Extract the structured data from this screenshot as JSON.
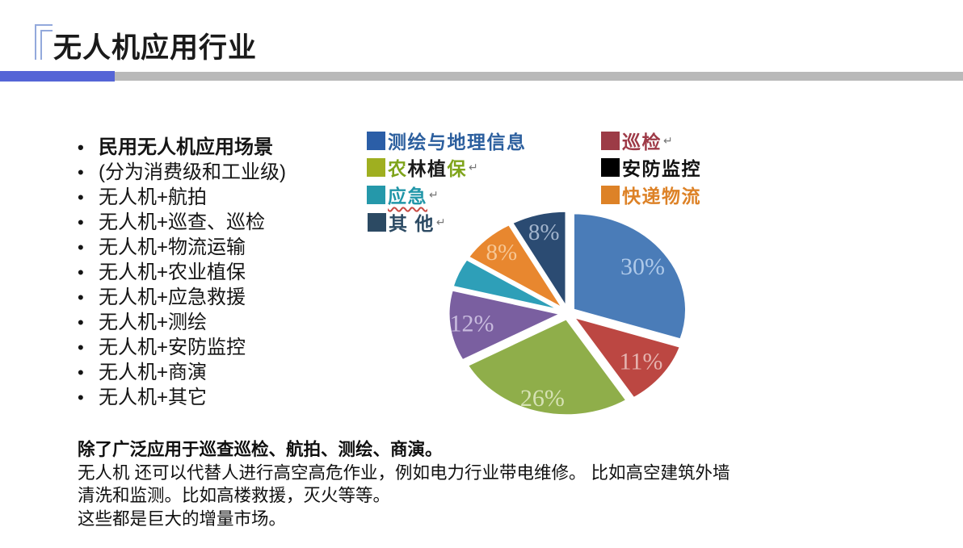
{
  "slide": {
    "title": "无人机应用行业",
    "divider_blue": "#5565d6",
    "divider_gray": "#b9b9b9"
  },
  "list": {
    "items": [
      "民用无人机应用场景",
      "(分为消费级和工业级)",
      "无人机+航拍",
      "无人机+巡查、巡检",
      "无人机+物流运输",
      "无人机+农业植保",
      "无人机+应急救援",
      "无人机+测绘",
      "无人机+安防监控",
      "无人机+商演",
      "无人机+其它"
    ]
  },
  "legend": {
    "left": [
      {
        "label": "测绘与地理信息",
        "square": "#2b5ea7",
        "text_color": "#2c5f9e",
        "arrow": ""
      },
      {
        "p1": "农",
        "p2": "林植",
        "p3": "保",
        "square": "#9faf20",
        "green": "#7fa41b",
        "black": "#1a1a1a",
        "arrow": "↵"
      },
      {
        "label": "应急",
        "square": "#2598aa",
        "text_color": "#2196a8",
        "arrow": "↵"
      },
      {
        "label": "其 他",
        "square": "#2c4a63",
        "text_color": "#2c4a63",
        "arrow": "↵"
      }
    ],
    "right": [
      {
        "label": "巡检",
        "square": "#9c3b46",
        "text_color": "#9e3a47",
        "arrow": "↵"
      },
      {
        "label": "安防监控",
        "square": "#000000",
        "text_color": "#111111",
        "arrow": ""
      },
      {
        "label": "快递物流",
        "square": "#dd8227",
        "text_color": "#dd8227",
        "arrow": ""
      }
    ]
  },
  "chart_data": {
    "type": "pie",
    "title": "",
    "start_angle": "12-oclock",
    "clockwise": true,
    "ellipse": true,
    "legend_position": "top",
    "slices": [
      {
        "name": "测绘与地理信息",
        "value": 30,
        "label": "30%",
        "color": "#4a7cb8",
        "label_color": "#aec9e9"
      },
      {
        "name": "巡检",
        "value": 11,
        "label": "11%",
        "color": "#bc4742",
        "label_color": "#e5b4b0"
      },
      {
        "name": "农林植保",
        "value": 26,
        "label": "26%",
        "color": "#8fae4a",
        "label_color": "#d6e2b4"
      },
      {
        "name": "安防监控",
        "value": 12,
        "label": "12%",
        "color": "#7a5fa0",
        "label_color": "#c8bbde"
      },
      {
        "name": "应急",
        "value": 5,
        "label": "",
        "color": "#2e9fb8",
        "label_color": "#ffffff"
      },
      {
        "name": "快递物流",
        "value": 8,
        "label": "8%",
        "color": "#e8872f",
        "label_color": "#f6c795"
      },
      {
        "name": "其他",
        "value": 8,
        "label": "8%",
        "color": "#2b4b72",
        "label_color": "#a3b5cd"
      }
    ]
  },
  "footer": {
    "line1": "除了广泛应用于巡查巡检、航拍、测绘、商演。",
    "line2": "无人机 还可以代替人进行高空高危作业，例如电力行业带电维修。 比如高空建筑外墙",
    "line3": "清洗和监测。比如高楼救援，灭火等等。",
    "line4": "这些都是巨大的增量市场。"
  }
}
